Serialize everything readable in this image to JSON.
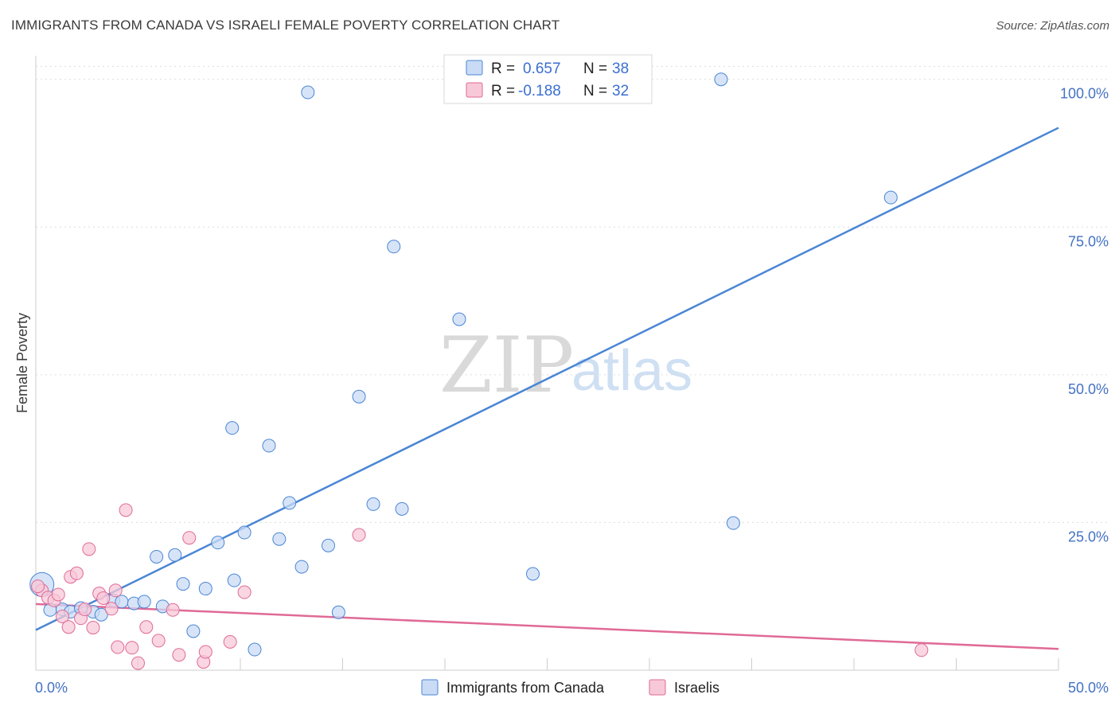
{
  "title": "IMMIGRANTS FROM CANADA VS ISRAELI FEMALE POVERTY CORRELATION CHART",
  "source": "Source: ZipAtlas.com",
  "watermark": {
    "zip": "ZIP",
    "atlas": "atlas"
  },
  "chart_data": {
    "type": "scatter",
    "title": "IMMIGRANTS FROM CANADA VS ISRAELI FEMALE POVERTY CORRELATION CHART",
    "xlabel": "",
    "ylabel": "Female Poverty",
    "xlim": [
      0,
      50
    ],
    "ylim": [
      0,
      104
    ],
    "x_tick_labels": {
      "left": "0.0%",
      "right": "50.0%"
    },
    "y_ticks": [
      {
        "value": 25,
        "label": "25.0%"
      },
      {
        "value": 50,
        "label": "50.0%"
      },
      {
        "value": 75,
        "label": "75.0%"
      },
      {
        "value": 100,
        "label": "100.0%"
      }
    ],
    "colors": {
      "canada": "#4a86d4",
      "israelis": "#e06a96",
      "canada_fill": "#c9dbf5",
      "israelis_fill": "#f7c8d8"
    },
    "legend": [
      {
        "r_label": "R =",
        "r_value": "0.657",
        "n_label": "N =",
        "n_value": "38"
      },
      {
        "r_label": "R =",
        "r_value": "-0.188",
        "n_label": "N =",
        "n_value": "32"
      }
    ],
    "series": [
      {
        "name": "Immigrants from Canada",
        "trend": {
          "x0": 0,
          "y0": 6.8,
          "x1": 50,
          "y1": 91.8
        },
        "points": [
          [
            0.3,
            14.5
          ],
          [
            0.7,
            10.2
          ],
          [
            1.3,
            10.3
          ],
          [
            1.7,
            9.9
          ],
          [
            2.2,
            10.5
          ],
          [
            2.8,
            9.9
          ],
          [
            3.2,
            9.4
          ],
          [
            3.8,
            11.8
          ],
          [
            4.2,
            11.6
          ],
          [
            4.8,
            11.3
          ],
          [
            5.3,
            11.6
          ],
          [
            5.9,
            19.2
          ],
          [
            6.2,
            10.8
          ],
          [
            6.8,
            19.5
          ],
          [
            7.2,
            14.6
          ],
          [
            7.7,
            6.6
          ],
          [
            8.3,
            13.8
          ],
          [
            8.9,
            21.6
          ],
          [
            9.6,
            41.0
          ],
          [
            9.7,
            15.2
          ],
          [
            10.2,
            23.3
          ],
          [
            10.7,
            3.5
          ],
          [
            11.4,
            38.0
          ],
          [
            11.9,
            22.2
          ],
          [
            12.4,
            28.3
          ],
          [
            13.0,
            17.5
          ],
          [
            13.3,
            97.8
          ],
          [
            14.3,
            21.1
          ],
          [
            14.8,
            9.8
          ],
          [
            15.8,
            46.3
          ],
          [
            16.5,
            28.1
          ],
          [
            17.5,
            71.7
          ],
          [
            17.9,
            27.3
          ],
          [
            20.7,
            59.4
          ],
          [
            24.3,
            16.3
          ],
          [
            33.5,
            100.0
          ],
          [
            34.1,
            24.9
          ],
          [
            41.8,
            80.0
          ]
        ]
      },
      {
        "name": "Israelis",
        "trend": {
          "x0": 0,
          "y0": 11.2,
          "x1": 50,
          "y1": 3.6
        },
        "points": [
          [
            0.3,
            13.5
          ],
          [
            0.6,
            12.3
          ],
          [
            0.9,
            11.8
          ],
          [
            1.1,
            12.8
          ],
          [
            1.3,
            9.1
          ],
          [
            1.6,
            7.3
          ],
          [
            1.7,
            15.8
          ],
          [
            2.0,
            16.4
          ],
          [
            2.2,
            8.8
          ],
          [
            2.4,
            10.3
          ],
          [
            2.6,
            20.5
          ],
          [
            2.8,
            7.2
          ],
          [
            3.1,
            13.0
          ],
          [
            3.3,
            12.2
          ],
          [
            3.7,
            10.4
          ],
          [
            3.9,
            13.5
          ],
          [
            4.0,
            3.9
          ],
          [
            4.4,
            27.1
          ],
          [
            4.7,
            3.8
          ],
          [
            5.0,
            1.2
          ],
          [
            5.4,
            7.3
          ],
          [
            6.0,
            5.0
          ],
          [
            6.7,
            10.2
          ],
          [
            7.0,
            2.6
          ],
          [
            7.5,
            22.4
          ],
          [
            8.2,
            1.4
          ],
          [
            8.3,
            3.1
          ],
          [
            9.5,
            4.8
          ],
          [
            10.2,
            13.2
          ],
          [
            15.8,
            22.9
          ],
          [
            43.3,
            3.4
          ],
          [
            0.1,
            14.2
          ]
        ]
      }
    ]
  }
}
